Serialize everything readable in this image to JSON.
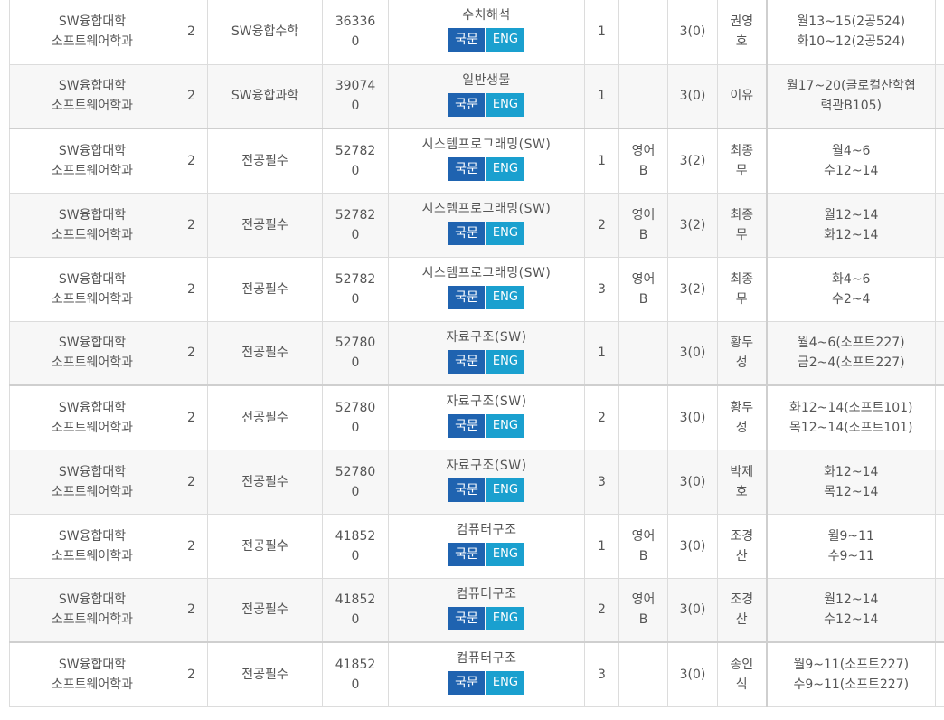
{
  "buttons": {
    "korean": "국문",
    "english": "ENG"
  },
  "rows": [
    {
      "college": "SW융합대학",
      "dept": "소프트웨어학과",
      "year": "2",
      "category": "SW융합수학",
      "code1": "36336",
      "code2": "0",
      "name": "수치해석",
      "section": "1",
      "lang1": "",
      "lang2": "",
      "credit": "3(0)",
      "prof1": "권영",
      "prof2": "호",
      "time1": "월13~15(2공524)",
      "time2": "화10~12(2공524)"
    },
    {
      "college": "SW융합대학",
      "dept": "소프트웨어학과",
      "year": "2",
      "category": "SW융합과학",
      "code1": "39074",
      "code2": "0",
      "name": "일반생물",
      "section": "1",
      "lang1": "",
      "lang2": "",
      "credit": "3(0)",
      "prof1": "이유",
      "prof2": "",
      "time1": "월17~20(글로컬산학협",
      "time2": "력관B105)"
    },
    {
      "college": "SW융합대학",
      "dept": "소프트웨어학과",
      "year": "2",
      "category": "전공필수",
      "code1": "52782",
      "code2": "0",
      "name": "시스템프로그래밍(SW)",
      "section": "1",
      "lang1": "영어",
      "lang2": "B",
      "credit": "3(2)",
      "prof1": "최종",
      "prof2": "무",
      "time1": "월4~6",
      "time2": "수12~14"
    },
    {
      "college": "SW융합대학",
      "dept": "소프트웨어학과",
      "year": "2",
      "category": "전공필수",
      "code1": "52782",
      "code2": "0",
      "name": "시스템프로그래밍(SW)",
      "section": "2",
      "lang1": "영어",
      "lang2": "B",
      "credit": "3(2)",
      "prof1": "최종",
      "prof2": "무",
      "time1": "월12~14",
      "time2": "화12~14"
    },
    {
      "college": "SW융합대학",
      "dept": "소프트웨어학과",
      "year": "2",
      "category": "전공필수",
      "code1": "52782",
      "code2": "0",
      "name": "시스템프로그래밍(SW)",
      "section": "3",
      "lang1": "영어",
      "lang2": "B",
      "credit": "3(2)",
      "prof1": "최종",
      "prof2": "무",
      "time1": "화4~6",
      "time2": "수2~4"
    },
    {
      "college": "SW융합대학",
      "dept": "소프트웨어학과",
      "year": "2",
      "category": "전공필수",
      "code1": "52780",
      "code2": "0",
      "name": "자료구조(SW)",
      "section": "1",
      "lang1": "",
      "lang2": "",
      "credit": "3(0)",
      "prof1": "황두",
      "prof2": "성",
      "time1": "월4~6(소프트227)",
      "time2": "금2~4(소프트227)"
    },
    {
      "college": "SW융합대학",
      "dept": "소프트웨어학과",
      "year": "2",
      "category": "전공필수",
      "code1": "52780",
      "code2": "0",
      "name": "자료구조(SW)",
      "section": "2",
      "lang1": "",
      "lang2": "",
      "credit": "3(0)",
      "prof1": "황두",
      "prof2": "성",
      "time1": "화12~14(소프트101)",
      "time2": "목12~14(소프트101)"
    },
    {
      "college": "SW융합대학",
      "dept": "소프트웨어학과",
      "year": "2",
      "category": "전공필수",
      "code1": "52780",
      "code2": "0",
      "name": "자료구조(SW)",
      "section": "3",
      "lang1": "",
      "lang2": "",
      "credit": "3(0)",
      "prof1": "박제",
      "prof2": "호",
      "time1": "화12~14",
      "time2": "목12~14"
    },
    {
      "college": "SW융합대학",
      "dept": "소프트웨어학과",
      "year": "2",
      "category": "전공필수",
      "code1": "41852",
      "code2": "0",
      "name": "컴퓨터구조",
      "section": "1",
      "lang1": "영어",
      "lang2": "B",
      "credit": "3(0)",
      "prof1": "조경",
      "prof2": "산",
      "time1": "월9~11",
      "time2": "수9~11"
    },
    {
      "college": "SW융합대학",
      "dept": "소프트웨어학과",
      "year": "2",
      "category": "전공필수",
      "code1": "41852",
      "code2": "0",
      "name": "컴퓨터구조",
      "section": "2",
      "lang1": "영어",
      "lang2": "B",
      "credit": "3(0)",
      "prof1": "조경",
      "prof2": "산",
      "time1": "월12~14",
      "time2": "수12~14"
    },
    {
      "college": "SW융합대학",
      "dept": "소프트웨어학과",
      "year": "2",
      "category": "전공필수",
      "code1": "41852",
      "code2": "0",
      "name": "컴퓨터구조",
      "section": "3",
      "lang1": "",
      "lang2": "",
      "credit": "3(0)",
      "prof1": "송인",
      "prof2": "식",
      "time1": "월9~11(소프트227)",
      "time2": "수9~11(소프트227)"
    }
  ]
}
